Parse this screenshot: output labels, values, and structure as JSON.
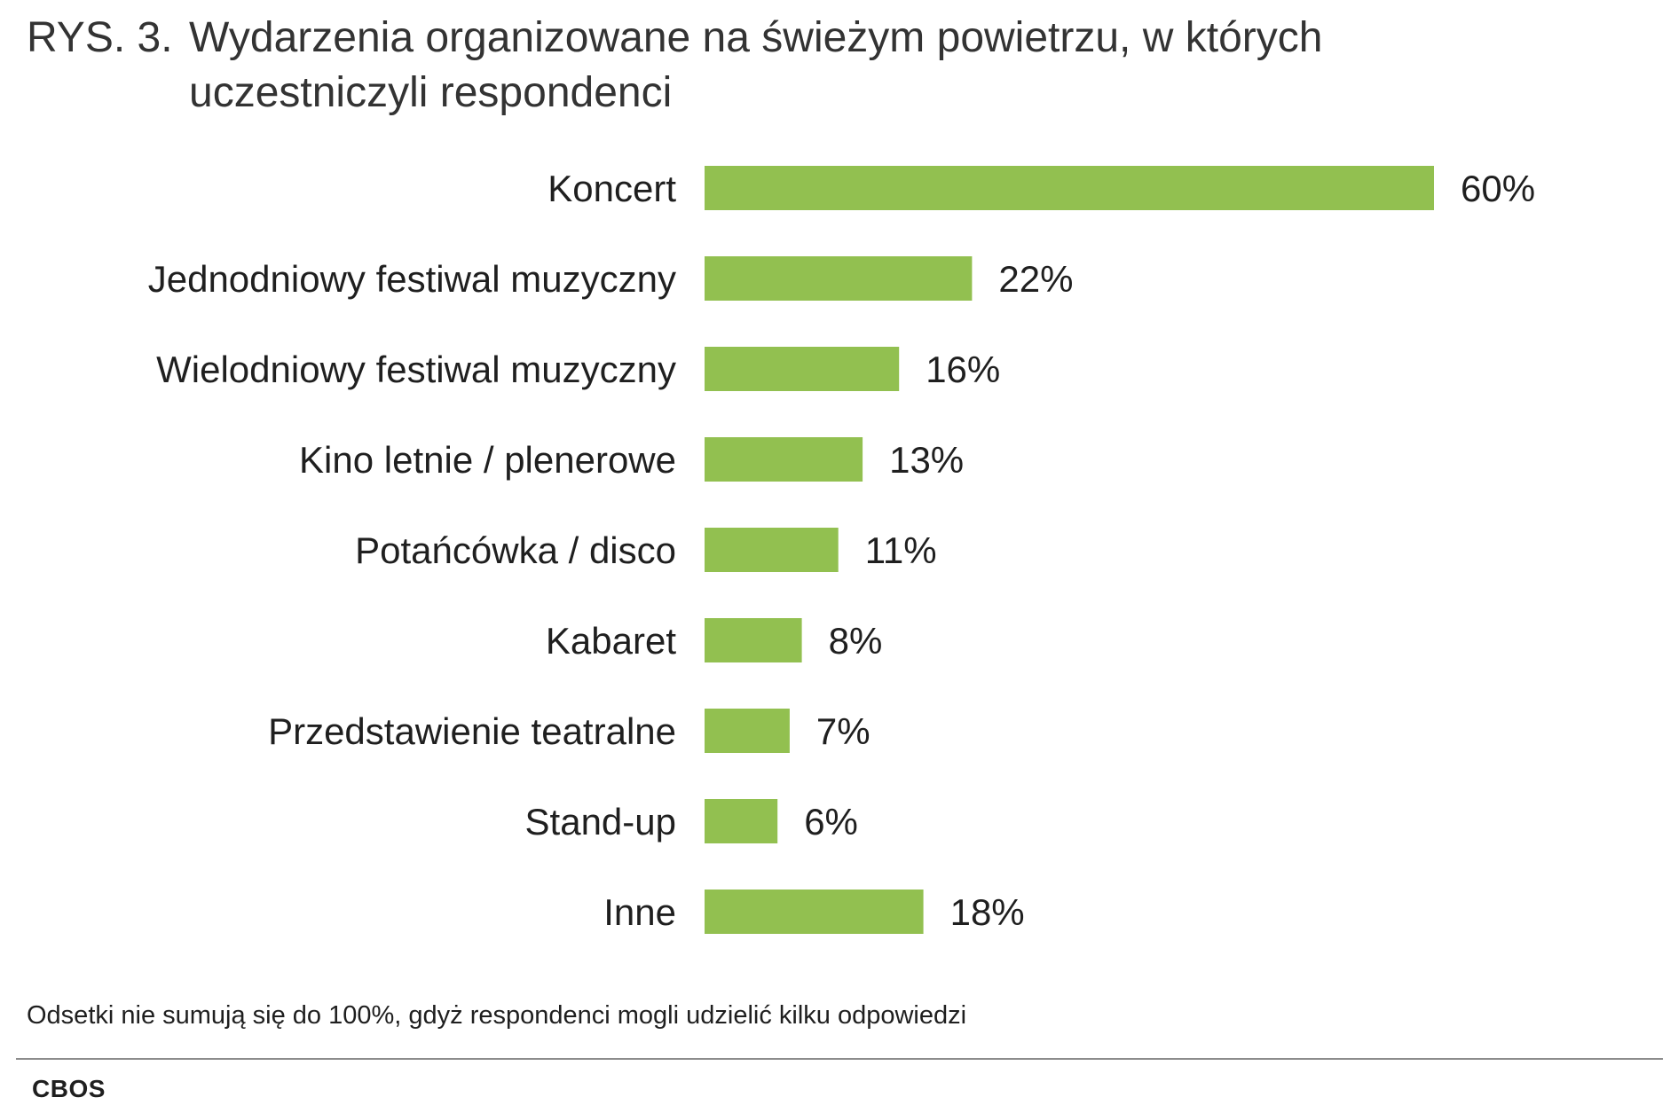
{
  "figure": {
    "number": "RYS. 3.",
    "title": "Wydarzenia organizowane na świeżym powietrzu, w których uczestniczyli respondenci"
  },
  "chart_data": {
    "type": "bar",
    "orientation": "horizontal",
    "categories": [
      "Koncert",
      "Jednodniowy festiwal muzyczny",
      "Wielodniowy festiwal muzyczny",
      "Kino letnie / plenerowe",
      "Potańcówka / disco",
      "Kabaret",
      "Przedstawienie teatralne",
      "Stand-up",
      "Inne"
    ],
    "values": [
      60,
      22,
      16,
      13,
      11,
      8,
      7,
      6,
      18
    ],
    "value_labels": [
      "60%",
      "22%",
      "16%",
      "13%",
      "11%",
      "8%",
      "7%",
      "6%",
      "18%"
    ],
    "unit": "%",
    "xlim": [
      0,
      60
    ],
    "grid": false,
    "bar_color": "#92c050"
  },
  "footnote": "Odsetki nie sumują się do 100%, gdyż respondenci mogli udzielić kilku odpowiedzi",
  "source": "CBOS"
}
